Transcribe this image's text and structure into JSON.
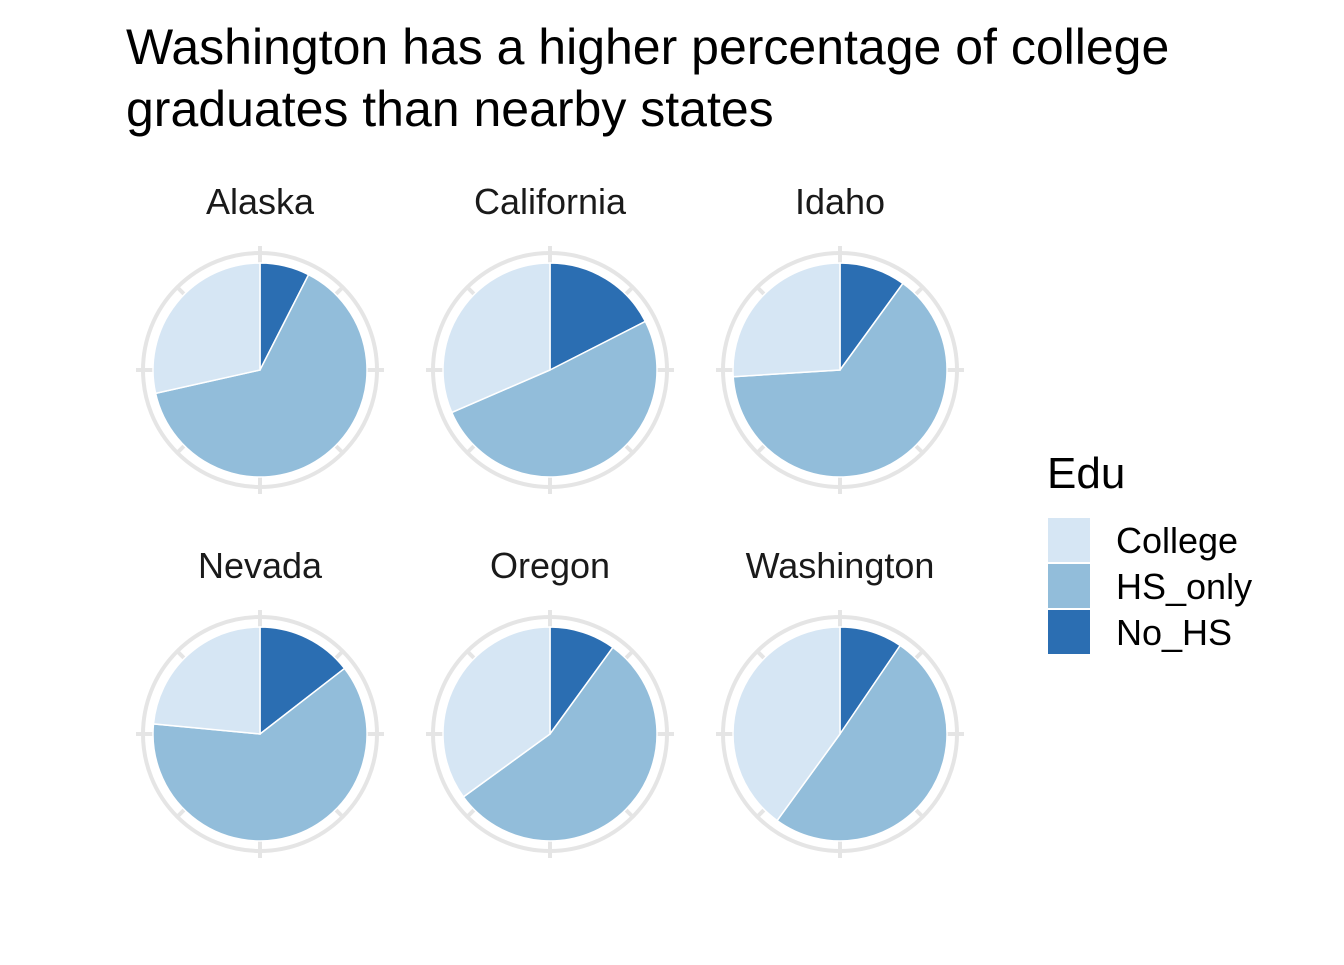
{
  "chart_data": {
    "type": "pie",
    "title_lines": [
      "Washington has a higher percentage of college",
      "graduates than nearby states"
    ],
    "legend": {
      "title": "Edu",
      "entries": [
        "College",
        "HS_only",
        "No_HS"
      ]
    },
    "colors": {
      "College": "#d6e6f4",
      "HS_only": "#92bdda",
      "No_HS": "#2b6eb2",
      "grid": "#e5e5e5"
    },
    "facets": [
      {
        "name": "Alaska",
        "values": {
          "No_HS": 0.075,
          "HS_only": 0.64,
          "College": 0.285
        }
      },
      {
        "name": "California",
        "values": {
          "No_HS": 0.175,
          "HS_only": 0.51,
          "College": 0.315
        }
      },
      {
        "name": "Idaho",
        "values": {
          "No_HS": 0.1,
          "HS_only": 0.64,
          "College": 0.26
        }
      },
      {
        "name": "Nevada",
        "values": {
          "No_HS": 0.145,
          "HS_only": 0.62,
          "College": 0.235
        }
      },
      {
        "name": "Oregon",
        "values": {
          "No_HS": 0.1,
          "HS_only": 0.55,
          "College": 0.35
        }
      },
      {
        "name": "Washington",
        "values": {
          "No_HS": 0.095,
          "HS_only": 0.505,
          "College": 0.4
        }
      }
    ]
  }
}
